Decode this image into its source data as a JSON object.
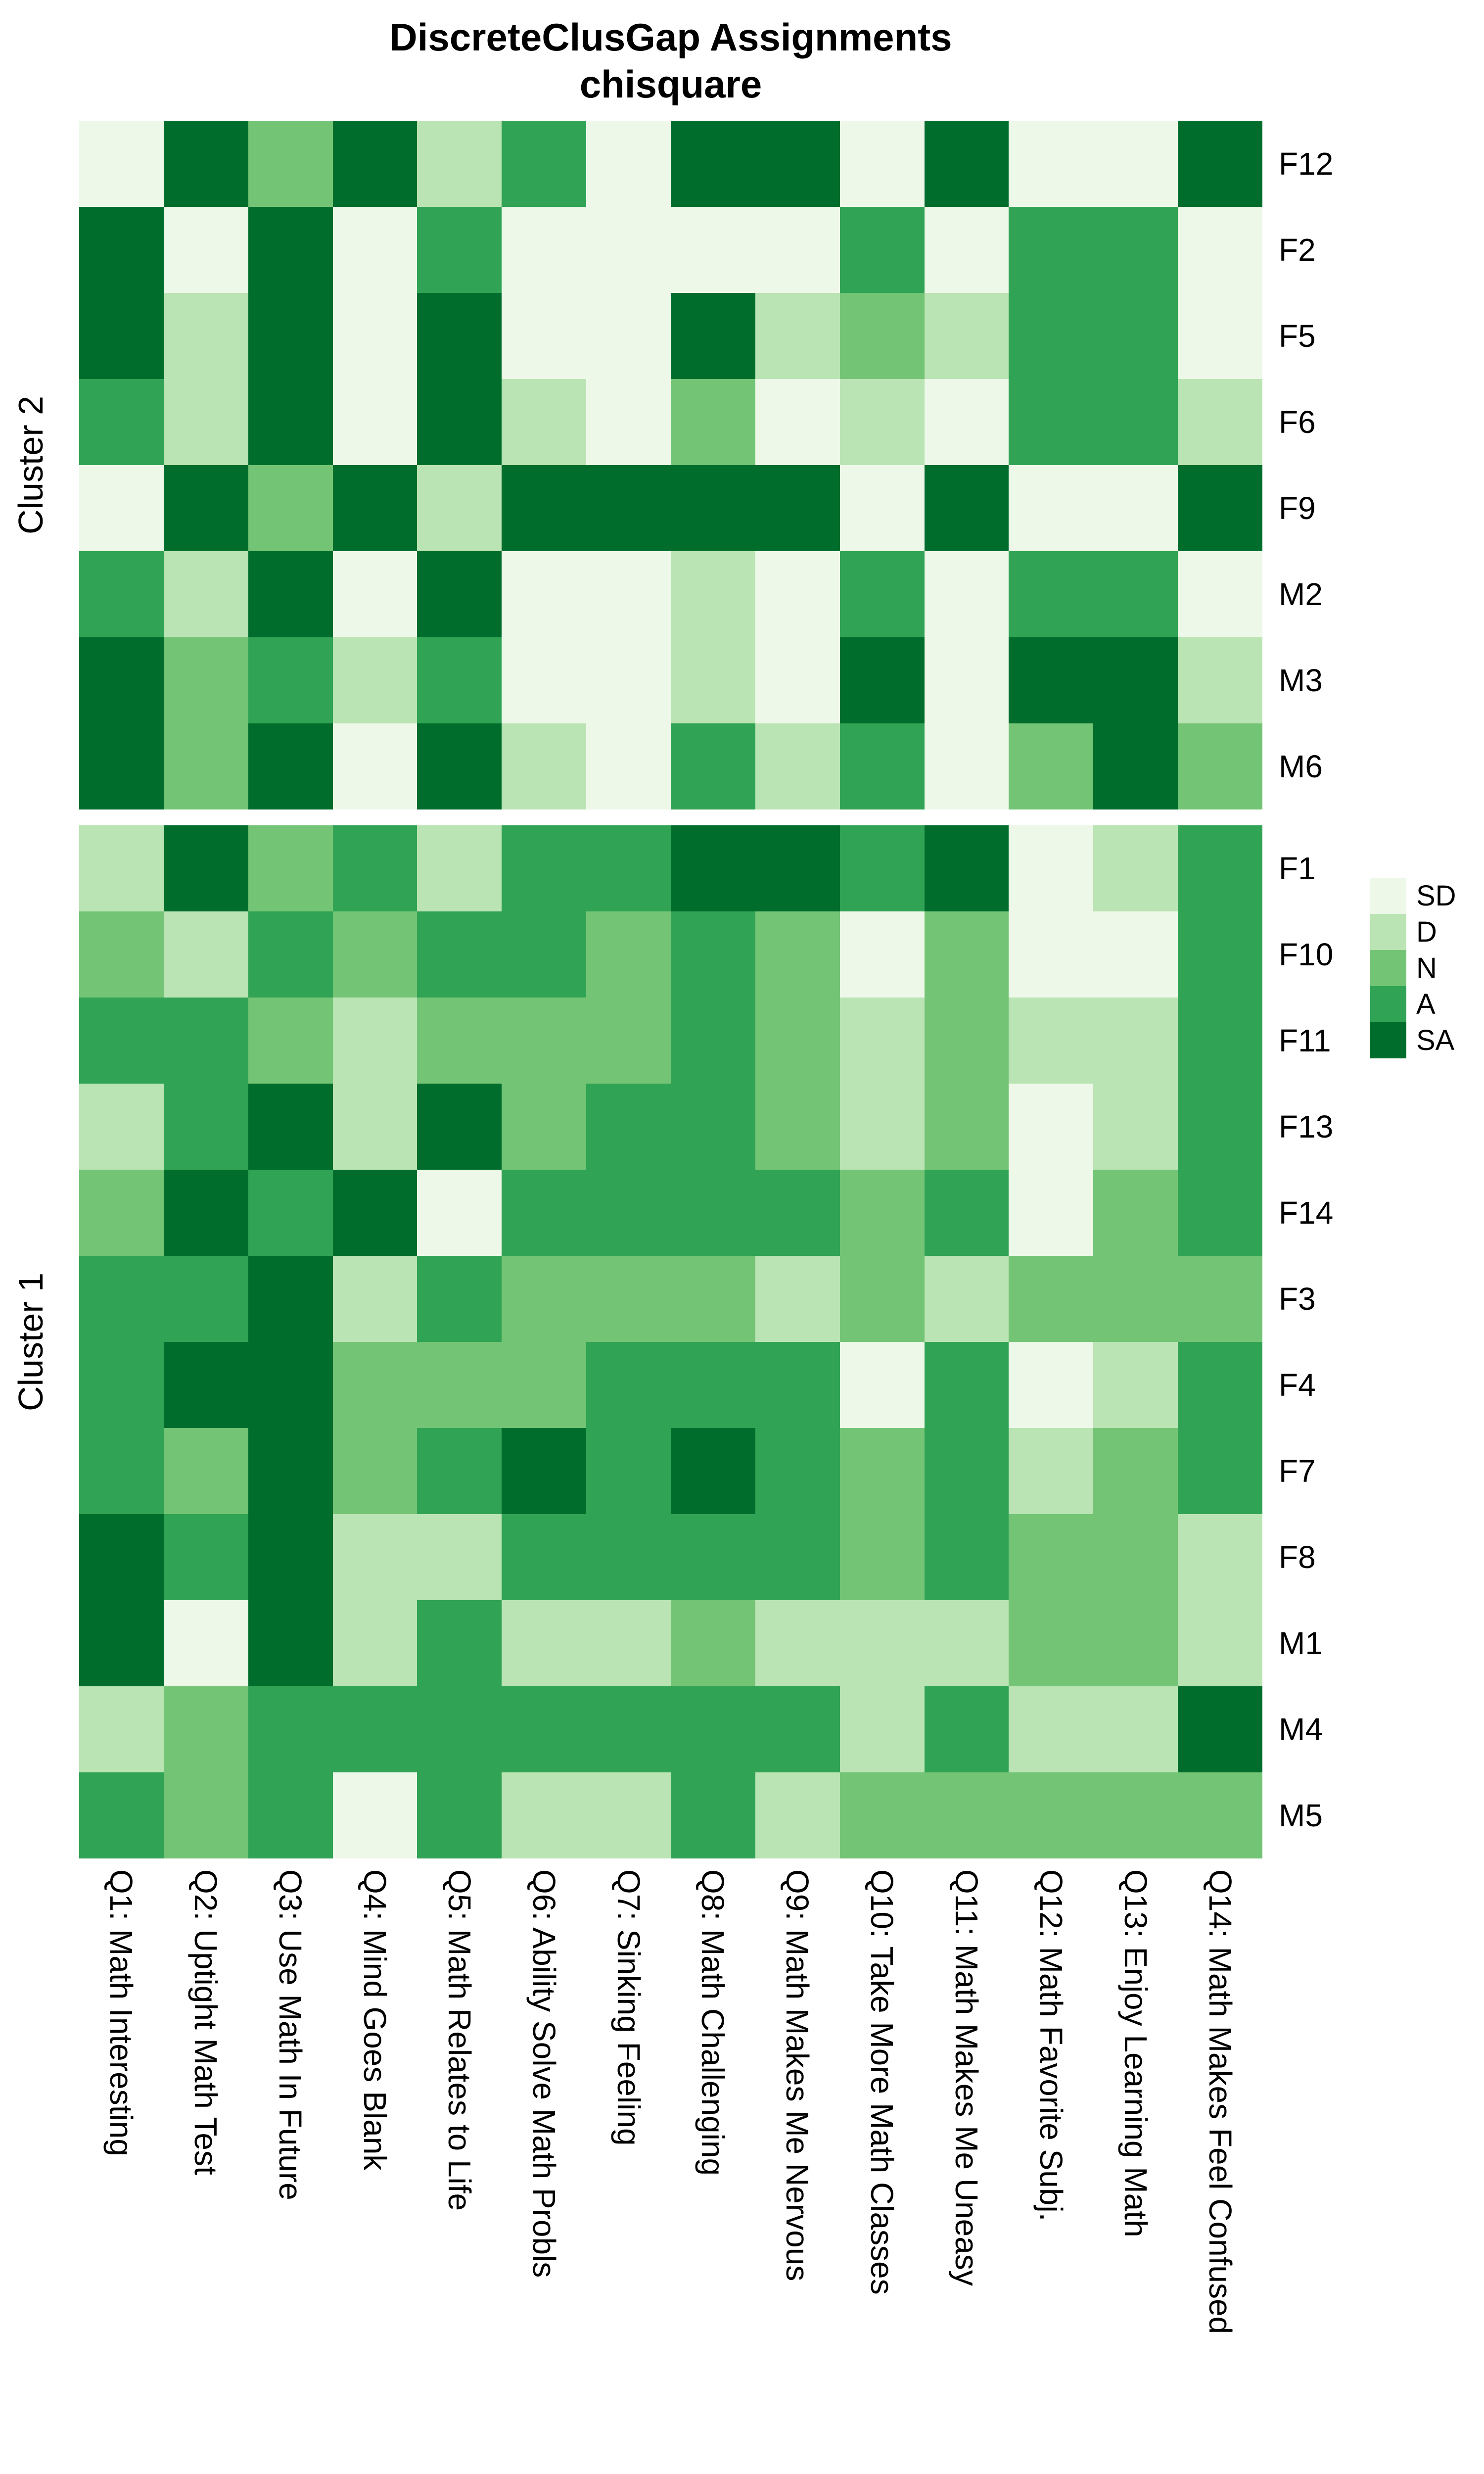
{
  "chart_data": {
    "type": "heatmap",
    "title": "DiscreteClusGap Assignments",
    "subtitle": "chisquare",
    "value_scale": [
      "SD",
      "D",
      "N",
      "A",
      "SA"
    ],
    "palette": {
      "SD": "#EDF8E9",
      "D": "#BAE4B3",
      "N": "#74C476",
      "A": "#31A354",
      "SA": "#006D2C"
    },
    "legend": {
      "position": "right",
      "labels": [
        "SD",
        "D",
        "N",
        "A",
        "SA"
      ]
    },
    "columns": [
      "Q1: Math Interesting",
      "Q2: Uptight Math Test",
      "Q3: Use Math In Future",
      "Q4: Mind Goes Blank",
      "Q5: Math Relates to Life",
      "Q6: Ability Solve Math Probls",
      "Q7: Sinking Feeling",
      "Q8: Math Challenging",
      "Q9: Math Makes Me Nervous",
      "Q10: Take More Math Classes",
      "Q11: Math Makes Me Uneasy",
      "Q12: Math Favorite Subj.",
      "Q13: Enjoy Learning Math",
      "Q14: Math Makes Feel Confused"
    ],
    "clusters": [
      {
        "label": "Cluster 2",
        "rows": [
          {
            "id": "F12",
            "values": [
              "SD",
              "SA",
              "N",
              "SA",
              "D",
              "A",
              "SD",
              "SA",
              "SA",
              "SD",
              "SA",
              "SD",
              "SD",
              "SA"
            ]
          },
          {
            "id": "F2",
            "values": [
              "SA",
              "SD",
              "SA",
              "SD",
              "A",
              "SD",
              "SD",
              "SD",
              "SD",
              "A",
              "SD",
              "A",
              "A",
              "SD"
            ]
          },
          {
            "id": "F5",
            "values": [
              "SA",
              "D",
              "SA",
              "SD",
              "SA",
              "SD",
              "SD",
              "SA",
              "D",
              "N",
              "D",
              "A",
              "A",
              "SD"
            ]
          },
          {
            "id": "F6",
            "values": [
              "A",
              "D",
              "SA",
              "SD",
              "SA",
              "D",
              "SD",
              "N",
              "SD",
              "D",
              "SD",
              "A",
              "A",
              "D"
            ]
          },
          {
            "id": "F9",
            "values": [
              "SD",
              "SA",
              "N",
              "SA",
              "D",
              "SA",
              "SA",
              "SA",
              "SA",
              "SD",
              "SA",
              "SD",
              "SD",
              "SA"
            ]
          },
          {
            "id": "M2",
            "values": [
              "A",
              "D",
              "SA",
              "SD",
              "SA",
              "SD",
              "SD",
              "D",
              "SD",
              "A",
              "SD",
              "A",
              "A",
              "SD"
            ]
          },
          {
            "id": "M3",
            "values": [
              "SA",
              "N",
              "A",
              "D",
              "A",
              "SD",
              "SD",
              "D",
              "SD",
              "SA",
              "SD",
              "SA",
              "SA",
              "D"
            ]
          },
          {
            "id": "M6",
            "values": [
              "SA",
              "N",
              "SA",
              "SD",
              "SA",
              "D",
              "SD",
              "A",
              "D",
              "A",
              "SD",
              "N",
              "SA",
              "N"
            ]
          }
        ]
      },
      {
        "label": "Cluster 1",
        "rows": [
          {
            "id": "F1",
            "values": [
              "D",
              "SA",
              "N",
              "A",
              "D",
              "A",
              "A",
              "SA",
              "SA",
              "A",
              "SA",
              "SD",
              "D",
              "A"
            ]
          },
          {
            "id": "F10",
            "values": [
              "N",
              "D",
              "A",
              "N",
              "A",
              "A",
              "N",
              "A",
              "N",
              "SD",
              "N",
              "SD",
              "SD",
              "A"
            ]
          },
          {
            "id": "F11",
            "values": [
              "A",
              "A",
              "N",
              "D",
              "N",
              "N",
              "N",
              "A",
              "N",
              "D",
              "N",
              "D",
              "D",
              "A"
            ]
          },
          {
            "id": "F13",
            "values": [
              "D",
              "A",
              "SA",
              "D",
              "SA",
              "N",
              "A",
              "A",
              "N",
              "D",
              "N",
              "SD",
              "D",
              "A"
            ]
          },
          {
            "id": "F14",
            "values": [
              "N",
              "SA",
              "A",
              "SA",
              "SD",
              "A",
              "A",
              "A",
              "A",
              "N",
              "A",
              "SD",
              "N",
              "A"
            ]
          },
          {
            "id": "F3",
            "values": [
              "A",
              "A",
              "SA",
              "D",
              "A",
              "N",
              "N",
              "N",
              "D",
              "N",
              "D",
              "N",
              "N",
              "N"
            ]
          },
          {
            "id": "F4",
            "values": [
              "A",
              "SA",
              "SA",
              "N",
              "N",
              "N",
              "A",
              "A",
              "A",
              "SD",
              "A",
              "SD",
              "D",
              "A"
            ]
          },
          {
            "id": "F7",
            "values": [
              "A",
              "N",
              "SA",
              "N",
              "A",
              "SA",
              "A",
              "SA",
              "A",
              "N",
              "A",
              "D",
              "N",
              "A"
            ]
          },
          {
            "id": "F8",
            "values": [
              "SA",
              "A",
              "SA",
              "D",
              "D",
              "A",
              "A",
              "A",
              "A",
              "N",
              "A",
              "N",
              "N",
              "D"
            ]
          },
          {
            "id": "M1",
            "values": [
              "SA",
              "SD",
              "SA",
              "D",
              "A",
              "D",
              "D",
              "N",
              "D",
              "D",
              "D",
              "N",
              "N",
              "D"
            ]
          },
          {
            "id": "M4",
            "values": [
              "D",
              "N",
              "A",
              "A",
              "A",
              "A",
              "A",
              "A",
              "A",
              "D",
              "A",
              "D",
              "D",
              "SA"
            ]
          },
          {
            "id": "M5",
            "values": [
              "A",
              "N",
              "A",
              "SD",
              "A",
              "D",
              "D",
              "A",
              "D",
              "N",
              "N",
              "N",
              "N",
              "N"
            ]
          }
        ]
      }
    ]
  }
}
